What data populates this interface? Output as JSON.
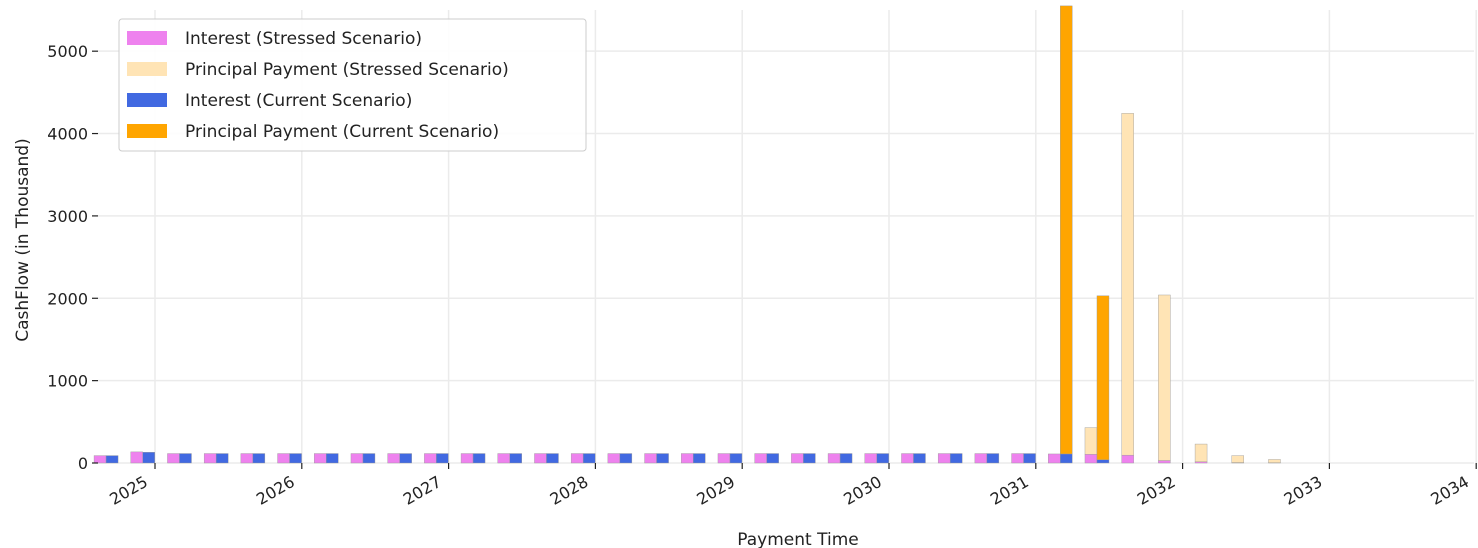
{
  "chart_data": {
    "type": "bar",
    "stacked": true,
    "title": "",
    "xlabel": "Payment Time",
    "ylabel": "CashFlow (in Thousand)",
    "ylim": [
      0,
      5500
    ],
    "grid": true,
    "legend_position": "top-left",
    "x_ticks": [
      "2025",
      "2026",
      "2027",
      "2028",
      "2029",
      "2030",
      "2031",
      "2032",
      "2033",
      "2034"
    ],
    "y_ticks": [
      "0",
      "1000",
      "2000",
      "3000",
      "4000",
      "5000"
    ],
    "stressed_dates": [
      "2024-09",
      "2024-12",
      "2025-03",
      "2025-06",
      "2025-09",
      "2025-12",
      "2026-03",
      "2026-06",
      "2026-09",
      "2026-12",
      "2027-03",
      "2027-06",
      "2027-09",
      "2027-12",
      "2028-03",
      "2028-06",
      "2028-09",
      "2028-12",
      "2029-03",
      "2029-06",
      "2029-09",
      "2029-12",
      "2030-03",
      "2030-06",
      "2030-09",
      "2030-12",
      "2031-03",
      "2031-06",
      "2031-09",
      "2031-12",
      "2032-03",
      "2032-06",
      "2032-09"
    ],
    "current_dates": [
      "2024-09",
      "2024-12",
      "2025-03",
      "2025-06",
      "2025-09",
      "2025-12",
      "2026-03",
      "2026-06",
      "2026-09",
      "2026-12",
      "2027-03",
      "2027-06",
      "2027-09",
      "2027-12",
      "2028-03",
      "2028-06",
      "2028-09",
      "2028-12",
      "2029-03",
      "2029-06",
      "2029-09",
      "2029-12",
      "2030-03",
      "2030-06",
      "2030-09",
      "2030-12",
      "2031-03",
      "2031-06"
    ],
    "series": [
      {
        "name": "Interest (Stressed Scenario)",
        "color": "#ee82ee",
        "group": "stressed",
        "values": [
          90,
          135,
          115,
          115,
          115,
          115,
          115,
          115,
          115,
          115,
          115,
          115,
          115,
          115,
          115,
          115,
          115,
          115,
          115,
          115,
          115,
          115,
          115,
          115,
          115,
          115,
          110,
          105,
          95,
          30,
          15,
          5,
          3
        ]
      },
      {
        "name": "Principal Payment (Stressed Scenario)",
        "color": "#ffe4b5",
        "group": "stressed",
        "values": [
          0,
          0,
          0,
          0,
          0,
          0,
          0,
          0,
          0,
          0,
          0,
          0,
          0,
          0,
          0,
          0,
          0,
          0,
          0,
          0,
          0,
          0,
          0,
          0,
          0,
          0,
          0,
          325,
          4150,
          2010,
          215,
          85,
          40
        ]
      },
      {
        "name": "Interest (Current Scenario)",
        "color": "#4169e1",
        "group": "current",
        "values": [
          90,
          130,
          115,
          115,
          115,
          115,
          115,
          115,
          115,
          115,
          115,
          115,
          115,
          115,
          115,
          115,
          115,
          115,
          115,
          115,
          115,
          115,
          115,
          115,
          115,
          115,
          110,
          40
        ]
      },
      {
        "name": "Principal Payment (Current Scenario)",
        "color": "#ffa500",
        "group": "current",
        "values": [
          0,
          0,
          0,
          0,
          0,
          0,
          0,
          0,
          0,
          0,
          0,
          0,
          0,
          0,
          0,
          0,
          0,
          0,
          0,
          0,
          0,
          0,
          0,
          0,
          0,
          0,
          5440,
          1990
        ]
      }
    ]
  }
}
